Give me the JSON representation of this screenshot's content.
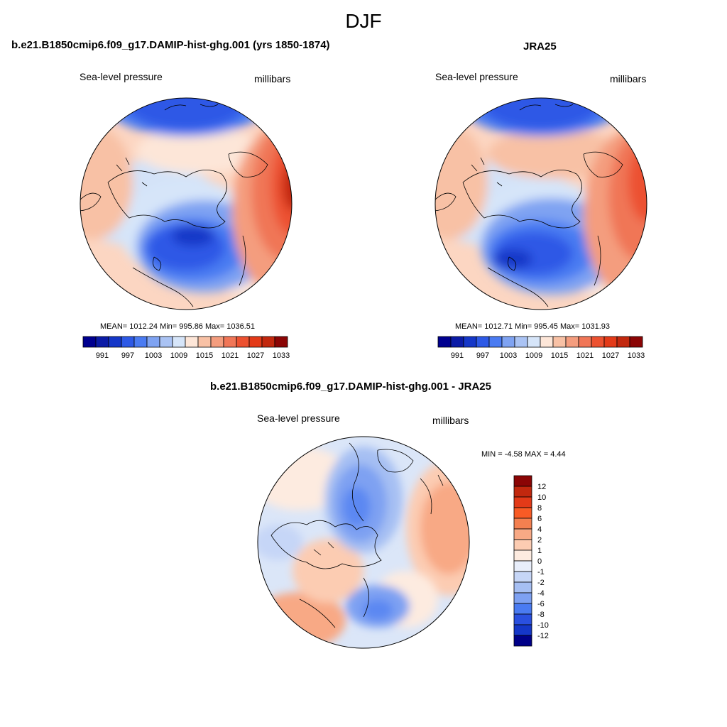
{
  "figure": {
    "season": "DJF"
  },
  "panels": [
    {
      "title": "b.e21.B1850cmip6.f09_g17.DAMIP-hist-ghg.001 (yrs 1850-1874)",
      "left_label": "Sea-level pressure",
      "right_label": "millibars",
      "stats": "MEAN= 1012.24  Min= 995.86  Max= 1036.51",
      "mean": 1012.24,
      "min": 995.86,
      "max": 1036.51
    },
    {
      "title": "JRA25",
      "left_label": "Sea-level pressure",
      "right_label": "millibars",
      "stats": "MEAN= 1012.71  Min= 995.45  Max= 1031.93",
      "mean": 1012.71,
      "min": 995.45,
      "max": 1031.93
    },
    {
      "title": "b.e21.B1850cmip6.f09_g17.DAMIP-hist-ghg.001 - JRA25",
      "left_label": "Sea-level pressure",
      "right_label": "millibars",
      "stats": "MIN =  -4.58 MAX =   4.44",
      "min": -4.58,
      "max": 4.44
    }
  ],
  "colorbar_abs": {
    "tick_labels": [
      "991",
      "997",
      "1003",
      "1009",
      "1015",
      "1021",
      "1027",
      "1033"
    ],
    "colors": [
      "#00008f",
      "#0b1ba6",
      "#1537c8",
      "#2d59e6",
      "#4a7bf2",
      "#7fa3f2",
      "#aac3f4",
      "#d6e5f9",
      "#fde6d8",
      "#f8c1a5",
      "#f49d7e",
      "#f07657",
      "#ec5130",
      "#e33a18",
      "#c2280e",
      "#8b0505"
    ]
  },
  "colorbar_diff": {
    "labels": [
      "12",
      "10",
      "8",
      "6",
      "4",
      "2",
      "1",
      "0",
      "-1",
      "-2",
      "-4",
      "-6",
      "-8",
      "-10",
      "-12"
    ],
    "colors": [
      "#8b0505",
      "#c2280e",
      "#e33a18",
      "#f85b25",
      "#f48050",
      "#f8a985",
      "#fcccb2",
      "#fdebe0",
      "#e8eefb",
      "#c6d6f7",
      "#a6bff3",
      "#7ea1f2",
      "#4a7bf2",
      "#2a50e0",
      "#1537c8",
      "#000088"
    ]
  }
}
